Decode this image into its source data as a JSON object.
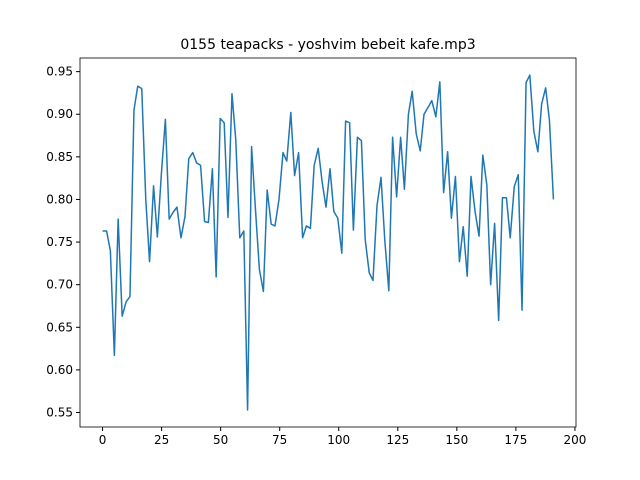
{
  "chart_data": {
    "type": "line",
    "title": "0155 teapacks - yoshvim bebeit kafe.mp3",
    "x": [
      0,
      1.7,
      3.3,
      5,
      6.6,
      8.3,
      10,
      11.6,
      13.3,
      14.9,
      16.6,
      18.3,
      19.9,
      21.6,
      23.2,
      24.9,
      26.6,
      28.2,
      29.9,
      31.5,
      33.2,
      34.9,
      36.5,
      38.2,
      39.8,
      41.5,
      43.2,
      44.8,
      46.5,
      48.1,
      49.8,
      51.5,
      53.1,
      54.8,
      56.4,
      58.1,
      59.8,
      61.4,
      63.1,
      64.7,
      66.4,
      68.1,
      69.7,
      71.4,
      73,
      74.7,
      76.4,
      78,
      79.7,
      81.3,
      83,
      84.7,
      86.3,
      88,
      89.6,
      91.3,
      93,
      94.6,
      96.3,
      97.9,
      99.6,
      101.3,
      102.9,
      104.6,
      106.2,
      107.9,
      109.6,
      111.2,
      112.9,
      114.5,
      116.2,
      117.9,
      119.5,
      121.2,
      122.8,
      124.5,
      126.2,
      127.8,
      129.5,
      131.1,
      132.8,
      134.5,
      136.1,
      137.8,
      139.4,
      141.1,
      142.8,
      144.4,
      146.1,
      147.7,
      149.4,
      151.1,
      152.7,
      154.4,
      156,
      157.7,
      159.4,
      161,
      162.7,
      164.3,
      166,
      167.7,
      169.3,
      171,
      172.6,
      174.3,
      176,
      177.6,
      179.3,
      180.9,
      182.6,
      184.3,
      185.9,
      187.6,
      189.2,
      190.9
    ],
    "series": [
      {
        "color": "#1f77b4",
        "values": [
          0.763,
          0.763,
          0.74,
          0.617,
          0.777,
          0.663,
          0.68,
          0.686,
          0.905,
          0.933,
          0.93,
          0.8,
          0.727,
          0.816,
          0.756,
          0.83,
          0.894,
          0.777,
          0.785,
          0.791,
          0.755,
          0.78,
          0.848,
          0.855,
          0.843,
          0.84,
          0.774,
          0.773,
          0.836,
          0.709,
          0.895,
          0.89,
          0.779,
          0.924,
          0.87,
          0.755,
          0.763,
          0.553,
          0.862,
          0.79,
          0.718,
          0.692,
          0.811,
          0.771,
          0.769,
          0.8,
          0.855,
          0.845,
          0.902,
          0.828,
          0.855,
          0.755,
          0.769,
          0.766,
          0.84,
          0.86,
          0.82,
          0.791,
          0.836,
          0.786,
          0.778,
          0.737,
          0.892,
          0.89,
          0.764,
          0.873,
          0.869,
          0.753,
          0.714,
          0.705,
          0.793,
          0.826,
          0.752,
          0.693,
          0.873,
          0.803,
          0.873,
          0.812,
          0.9,
          0.927,
          0.877,
          0.857,
          0.9,
          0.908,
          0.916,
          0.897,
          0.938,
          0.808,
          0.856,
          0.778,
          0.827,
          0.727,
          0.768,
          0.71,
          0.827,
          0.786,
          0.757,
          0.852,
          0.817,
          0.7,
          0.772,
          0.658,
          0.802,
          0.802,
          0.755,
          0.815,
          0.829,
          0.67,
          0.937,
          0.946,
          0.88,
          0.856,
          0.912,
          0.931,
          0.893,
          0.8
        ]
      }
    ],
    "xlim": [
      -9.55,
      200.45
    ],
    "xticks": [
      0,
      25,
      50,
      75,
      100,
      125,
      150,
      175,
      200
    ],
    "ylim": [
      0.533,
      0.966
    ],
    "yticks": [
      0.55,
      {
        "value": 0.6,
        "label": "0.60"
      },
      0.65,
      {
        "value": 0.7,
        "label": "0.70"
      },
      0.75,
      {
        "value": 0.8,
        "label": "0.80"
      },
      0.85,
      {
        "value": 0.9,
        "label": "0.90"
      },
      0.95
    ],
    "grid": false
  }
}
